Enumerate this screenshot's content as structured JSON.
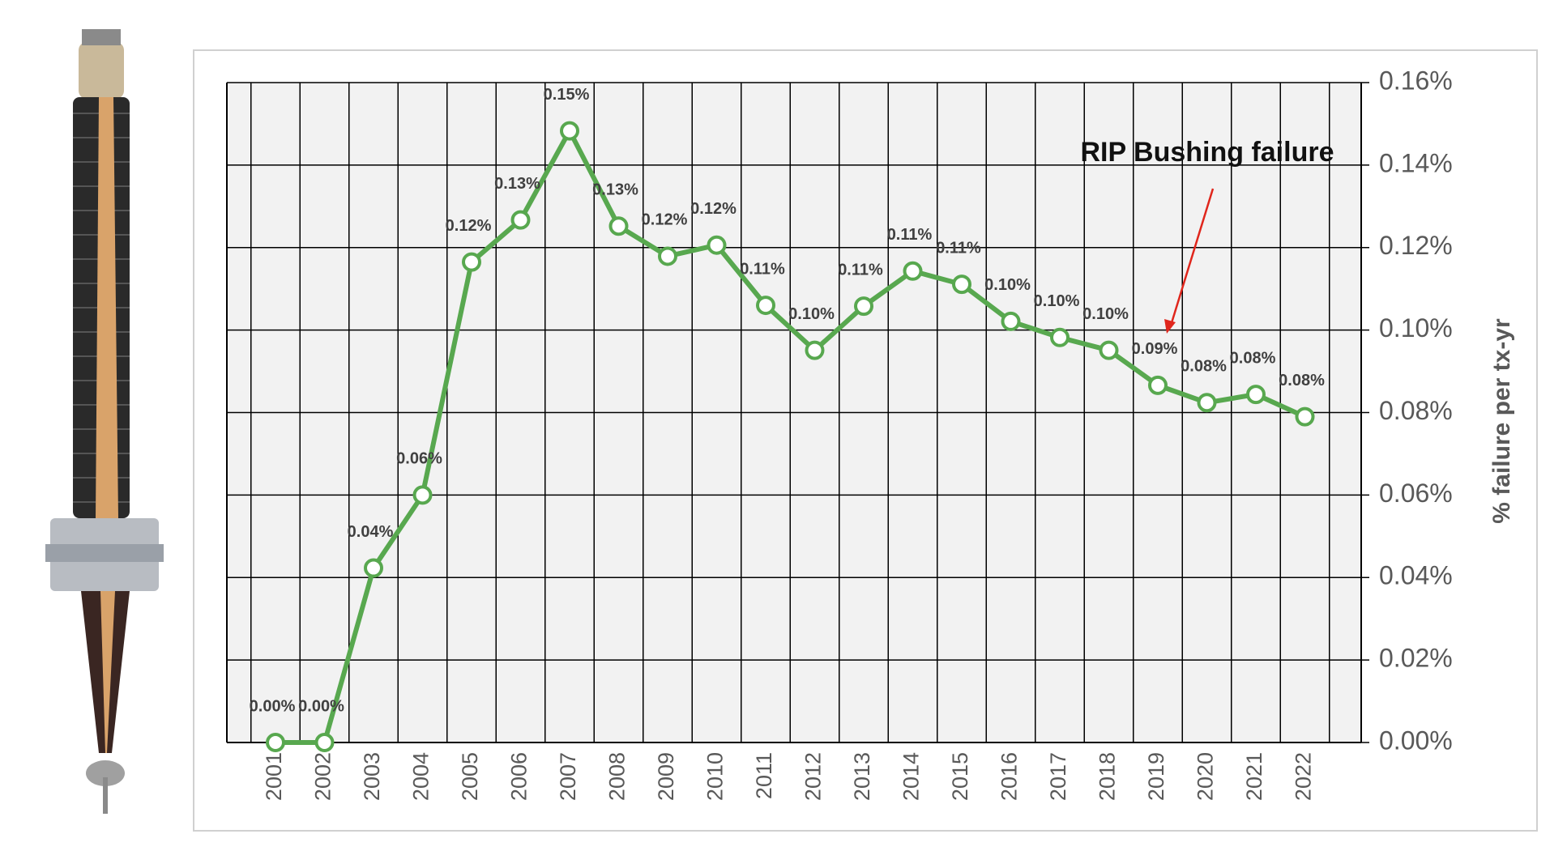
{
  "chart_data": {
    "type": "line",
    "y_label": "% failure per tx-yr",
    "annotation": "RIP Bushing failure",
    "categories": [
      "2001",
      "2002",
      "2003",
      "2004",
      "2005",
      "2006",
      "2007",
      "2008",
      "2009",
      "2010",
      "2011",
      "2012",
      "2013",
      "2014",
      "2015",
      "2016",
      "2017",
      "2018",
      "2019",
      "2020",
      "2021",
      "2022"
    ],
    "values": [
      0,
      0,
      0.0423,
      0.06,
      0.1165,
      0.1267,
      0.1483,
      0.1252,
      0.1179,
      0.1206,
      0.106,
      0.0951,
      0.1058,
      0.1143,
      0.1111,
      0.1021,
      0.0982,
      0.0951,
      0.0866,
      0.0824,
      0.0844,
      0.079
    ],
    "value_labels": [
      "0.00%",
      "0.00%",
      "0.04%",
      "0.06%",
      "0.12%",
      "0.13%",
      "0.15%",
      "0.13%",
      "0.12%",
      "0.12%",
      "0.11%",
      "0.10%",
      "0.11%",
      "0.11%",
      "0.11%",
      "0.10%",
      "0.10%",
      "0.10%",
      "0.09%",
      "0.08%",
      "0.08%",
      "0.08%"
    ],
    "color": "#58a84f",
    "ylim": [
      0,
      0.16
    ],
    "yticks": [
      {
        "value": 0,
        "label": "0.00%"
      },
      {
        "value": 0.02,
        "label": "0.02%"
      },
      {
        "value": 0.04,
        "label": "0.04%"
      },
      {
        "value": 0.06,
        "label": "0.06%"
      },
      {
        "value": 0.08,
        "label": "0.08%"
      },
      {
        "value": 0.1,
        "label": "0.10%"
      },
      {
        "value": 0.12,
        "label": "0.12%"
      },
      {
        "value": 0.14,
        "label": "0.14%"
      },
      {
        "value": 0.16,
        "label": "0.16%"
      }
    ],
    "grid": true
  }
}
